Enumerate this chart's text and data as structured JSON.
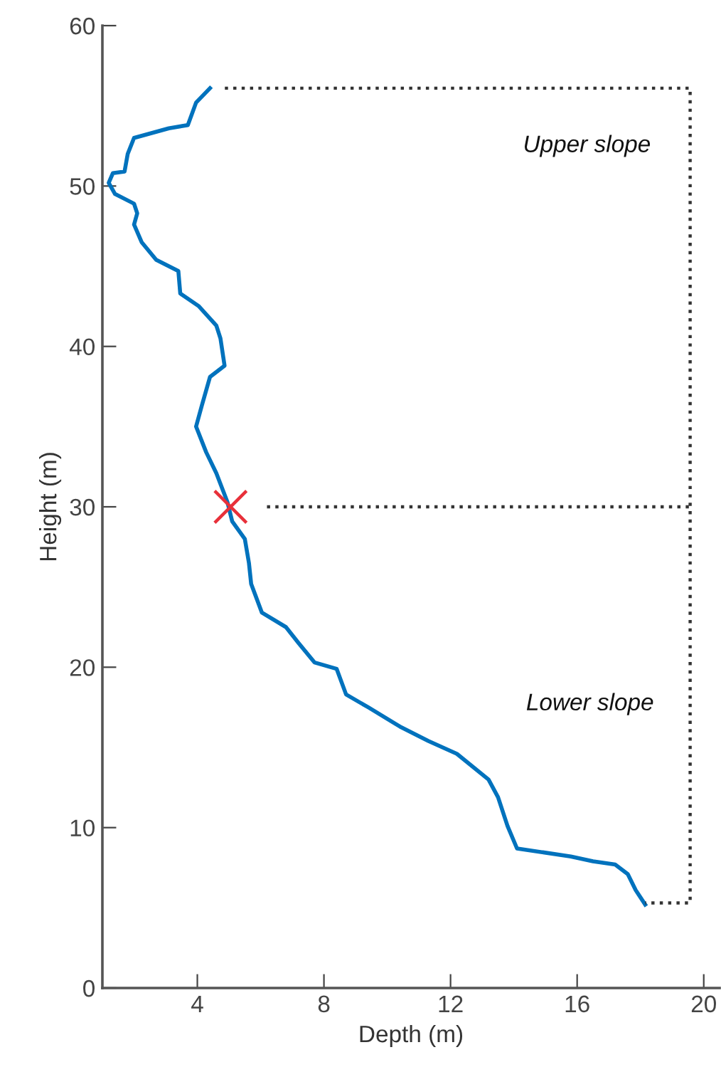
{
  "chart_data": {
    "type": "line",
    "xlabel": "Depth (m)",
    "ylabel": "Height (m)",
    "xlim": [
      1,
      20.5
    ],
    "ylim": [
      0,
      60
    ],
    "xticks": [
      4,
      8,
      12,
      16,
      20
    ],
    "yticks": [
      0,
      10,
      20,
      30,
      40,
      50,
      60
    ],
    "grid": false,
    "legend": false,
    "series": [
      {
        "color": "#0072bd",
        "marker": "none",
        "line_style": "solid",
        "x": [
          4.4,
          3.96,
          3.7,
          3.1,
          2.0,
          1.8,
          1.7,
          1.33,
          1.2,
          1.4,
          2.0,
          2.1,
          2.0,
          2.24,
          2.7,
          3.4,
          3.46,
          4.05,
          4.6,
          4.73,
          4.86,
          4.4,
          4.14,
          3.96,
          4.28,
          4.6,
          4.95,
          5.1,
          5.5,
          5.63,
          5.7,
          6.04,
          6.8,
          7.2,
          7.7,
          8.4,
          8.7,
          9.4,
          10.4,
          11.3,
          12.2,
          13.2,
          13.5,
          13.8,
          14.1,
          15.8,
          16.5,
          17.2,
          17.6,
          17.85,
          18.15
        ],
        "values": [
          56.1,
          55.2,
          53.8,
          53.6,
          53.0,
          52.0,
          50.9,
          50.8,
          50.2,
          49.5,
          48.9,
          48.3,
          47.6,
          46.5,
          45.4,
          44.7,
          43.3,
          42.5,
          41.3,
          40.5,
          38.8,
          38.1,
          36.3,
          35.0,
          33.4,
          32.1,
          30.3,
          29.1,
          28.0,
          26.5,
          25.2,
          23.4,
          22.5,
          21.5,
          20.3,
          19.9,
          18.3,
          17.5,
          16.3,
          15.4,
          14.6,
          13.0,
          11.9,
          10.1,
          8.7,
          8.2,
          7.9,
          7.7,
          7.1,
          6.1,
          5.2
        ]
      },
      {
        "color": "#333333",
        "marker": "none",
        "line_style": "dotted",
        "x": [
          4.87,
          19.57,
          19.57,
          18.15
        ],
        "values": [
          56.1,
          56.1,
          5.3,
          5.3
        ]
      },
      {
        "color": "#333333",
        "marker": "none",
        "line_style": "dotted",
        "x": [
          6.2,
          19.57
        ],
        "values": [
          30.0,
          30.0
        ]
      },
      {
        "type": "scatter",
        "color": "#e8303a",
        "marker": "cross",
        "x": [
          5.05
        ],
        "values": [
          30.0
        ]
      }
    ],
    "annotations": [
      "Upper slope",
      "Lower slope"
    ]
  }
}
